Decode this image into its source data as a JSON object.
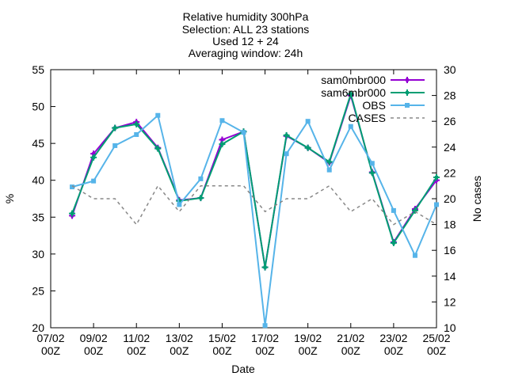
{
  "title_lines": [
    "Relative humidity 300hPa",
    "Selection: ALL      23 stations",
    "Used 12 + 24",
    "Averaging window: 24h"
  ],
  "chart_data": {
    "type": "line",
    "xlabel": "Date",
    "ylabel": "%",
    "y2label": "No cases",
    "ylim": [
      20,
      55
    ],
    "y2lim": [
      10,
      30
    ],
    "yticks": [
      20,
      25,
      30,
      35,
      40,
      45,
      50,
      55
    ],
    "y2ticks": [
      10,
      12,
      14,
      16,
      18,
      20,
      22,
      24,
      26,
      28,
      30
    ],
    "xlim_days": [
      7,
      25
    ],
    "xticks": [
      {
        "day": 7,
        "line1": "07/02",
        "line2": "00Z"
      },
      {
        "day": 9,
        "line1": "09/02",
        "line2": "00Z"
      },
      {
        "day": 11,
        "line1": "11/02",
        "line2": "00Z"
      },
      {
        "day": 13,
        "line1": "13/02",
        "line2": "00Z"
      },
      {
        "day": 15,
        "line1": "15/02",
        "line2": "00Z"
      },
      {
        "day": 17,
        "line1": "17/02",
        "line2": "00Z"
      },
      {
        "day": 19,
        "line1": "19/02",
        "line2": "00Z"
      },
      {
        "day": 21,
        "line1": "21/02",
        "line2": "00Z"
      },
      {
        "day": 23,
        "line1": "23/02",
        "line2": "00Z"
      },
      {
        "day": 25,
        "line1": "25/02",
        "line2": "00Z"
      }
    ],
    "x": [
      8,
      9,
      10,
      11,
      12,
      13,
      14,
      15,
      16,
      17,
      18,
      19,
      20,
      21,
      22,
      23,
      24,
      25
    ],
    "series": [
      {
        "name": "sam0mbr000",
        "color": "#9400d3",
        "axis": "y",
        "dash": false,
        "marker": "plus",
        "values": [
          35.2,
          43.6,
          47.1,
          47.9,
          44.4,
          37.3,
          37.6,
          45.5,
          46.6,
          28.2,
          46.0,
          44.4,
          42.4,
          51.5,
          41.1,
          31.6,
          36.1,
          40.0
        ]
      },
      {
        "name": "sam6mbr000",
        "color": "#009e73",
        "axis": "y",
        "dash": false,
        "marker": "plus",
        "values": [
          35.5,
          43.1,
          47.1,
          47.6,
          44.3,
          37.2,
          37.6,
          44.9,
          46.6,
          28.2,
          46.1,
          44.4,
          42.5,
          51.7,
          41.0,
          31.5,
          35.9,
          40.4
        ]
      },
      {
        "name": "OBS",
        "color": "#56b4e9",
        "axis": "y",
        "dash": false,
        "marker": "square",
        "values": [
          39.1,
          39.9,
          44.7,
          46.2,
          48.8,
          36.7,
          40.2,
          48.1,
          46.5,
          20.3,
          43.6,
          48.0,
          41.4,
          47.3,
          42.3,
          35.9,
          29.8,
          36.7
        ]
      },
      {
        "name": "CASES",
        "color": "#888888",
        "axis": "y2",
        "dash": true,
        "marker": "none",
        "values": [
          21,
          20,
          20,
          18,
          21,
          19,
          21,
          21,
          21,
          19,
          20,
          20,
          21,
          19,
          20,
          18,
          19,
          18
        ]
      }
    ]
  }
}
